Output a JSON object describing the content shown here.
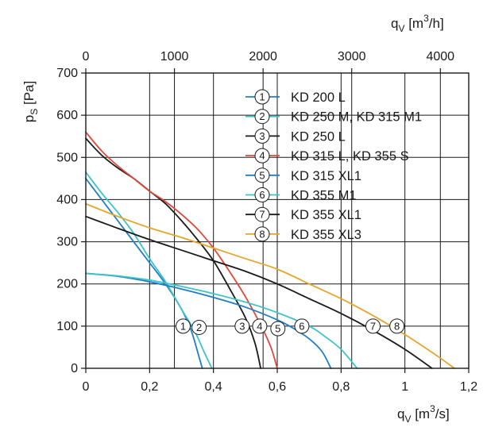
{
  "chart_data": {
    "type": "line",
    "ylabel": {
      "main": "p",
      "sub": "S",
      "unit": " [Pa]"
    },
    "xlabel_bottom": {
      "main": "q",
      "sub": "V",
      "unit_pre": " [m",
      "sup": "3",
      "unit_post": "/s]"
    },
    "xlabel_top": {
      "main": "q",
      "sub": "V",
      "unit_pre": " [m",
      "sup": "3",
      "unit_post": "/h]"
    },
    "x_range": [
      0,
      1.2
    ],
    "x_ticks": [
      0,
      0.2,
      0.4,
      0.6,
      0.8,
      1,
      1.2
    ],
    "x_tick_labels": [
      "0",
      "0,2",
      "0,4",
      "0,6",
      "0,8",
      "1",
      "1,2"
    ],
    "x_top_range_m3h": [
      0,
      4320
    ],
    "x_top_ticks": [
      0,
      1000,
      2000,
      3000,
      4000
    ],
    "x_top_tick_labels": [
      "0",
      "1000",
      "2000",
      "3000",
      "4000"
    ],
    "y_range": [
      0,
      700
    ],
    "y_ticks": [
      0,
      100,
      200,
      300,
      400,
      500,
      600,
      700
    ],
    "y_tick_labels": [
      "0",
      "100",
      "200",
      "300",
      "400",
      "500",
      "600",
      "700"
    ],
    "grid": true,
    "legend_position": "top-right",
    "series": [
      {
        "id": "1",
        "name": "KD 200 L",
        "color": "#1f7fc6",
        "points": [
          [
            0,
            450
          ],
          [
            0.05,
            400
          ],
          [
            0.1,
            350
          ],
          [
            0.15,
            300
          ],
          [
            0.2,
            250
          ],
          [
            0.25,
            200
          ],
          [
            0.3,
            140
          ],
          [
            0.33,
            90
          ],
          [
            0.35,
            40
          ],
          [
            0.365,
            0
          ]
        ],
        "marker_at": [
          0.305,
          100
        ]
      },
      {
        "id": "2",
        "name": "KD 250 M, KD 315 M1",
        "color": "#3cc4c8",
        "points": [
          [
            0,
            465
          ],
          [
            0.05,
            415
          ],
          [
            0.1,
            370
          ],
          [
            0.15,
            320
          ],
          [
            0.2,
            260
          ],
          [
            0.25,
            205
          ],
          [
            0.3,
            140
          ],
          [
            0.34,
            90
          ],
          [
            0.37,
            40
          ],
          [
            0.395,
            0
          ]
        ],
        "marker_at": [
          0.355,
          97
        ]
      },
      {
        "id": "3",
        "name": "KD 250 L",
        "color": "#1a1a1a",
        "points": [
          [
            0,
            545
          ],
          [
            0.05,
            505
          ],
          [
            0.1,
            475
          ],
          [
            0.15,
            450
          ],
          [
            0.2,
            420
          ],
          [
            0.25,
            390
          ],
          [
            0.3,
            350
          ],
          [
            0.35,
            305
          ],
          [
            0.4,
            255
          ],
          [
            0.45,
            190
          ],
          [
            0.5,
            120
          ],
          [
            0.53,
            60
          ],
          [
            0.548,
            0
          ]
        ],
        "marker_at": [
          0.49,
          100
        ]
      },
      {
        "id": "4",
        "name": "KD 315 L, KD 355 S",
        "color": "#e2463b",
        "points": [
          [
            0,
            560
          ],
          [
            0.05,
            515
          ],
          [
            0.1,
            480
          ],
          [
            0.15,
            450
          ],
          [
            0.2,
            420
          ],
          [
            0.25,
            395
          ],
          [
            0.3,
            365
          ],
          [
            0.35,
            330
          ],
          [
            0.4,
            285
          ],
          [
            0.45,
            230
          ],
          [
            0.5,
            170
          ],
          [
            0.55,
            100
          ],
          [
            0.58,
            50
          ],
          [
            0.6,
            0
          ]
        ],
        "marker_at": [
          0.545,
          100
        ]
      },
      {
        "id": "5",
        "name": "KD 315 XL1",
        "color": "#1f7fc6",
        "points": [
          [
            0,
            225
          ],
          [
            0.1,
            218
          ],
          [
            0.2,
            205
          ],
          [
            0.3,
            188
          ],
          [
            0.4,
            168
          ],
          [
            0.5,
            145
          ],
          [
            0.6,
            115
          ],
          [
            0.65,
            95
          ],
          [
            0.7,
            70
          ],
          [
            0.74,
            40
          ],
          [
            0.768,
            0
          ]
        ],
        "marker_at": [
          0.602,
          94
        ]
      },
      {
        "id": "6",
        "name": "KD 355 M1",
        "color": "#3cc4c8",
        "points": [
          [
            0,
            225
          ],
          [
            0.1,
            219
          ],
          [
            0.2,
            209
          ],
          [
            0.3,
            194
          ],
          [
            0.4,
            177
          ],
          [
            0.5,
            157
          ],
          [
            0.6,
            132
          ],
          [
            0.7,
            100
          ],
          [
            0.75,
            75
          ],
          [
            0.8,
            45
          ],
          [
            0.85,
            0
          ]
        ],
        "marker_at": [
          0.677,
          100
        ]
      },
      {
        "id": "7",
        "name": "KD 355 XL1",
        "color": "#1a1a1a",
        "points": [
          [
            0,
            360
          ],
          [
            0.1,
            332
          ],
          [
            0.2,
            305
          ],
          [
            0.3,
            280
          ],
          [
            0.4,
            255
          ],
          [
            0.5,
            230
          ],
          [
            0.6,
            200
          ],
          [
            0.7,
            165
          ],
          [
            0.8,
            130
          ],
          [
            0.9,
            90
          ],
          [
            1,
            45
          ],
          [
            1.085,
            0
          ]
        ],
        "marker_at": [
          0.9,
          100
        ]
      },
      {
        "id": "8",
        "name": "KD 355 XL3",
        "color": "#e6a52a",
        "points": [
          [
            0,
            390
          ],
          [
            0.1,
            360
          ],
          [
            0.2,
            333
          ],
          [
            0.3,
            310
          ],
          [
            0.4,
            285
          ],
          [
            0.5,
            260
          ],
          [
            0.6,
            235
          ],
          [
            0.7,
            200
          ],
          [
            0.8,
            165
          ],
          [
            0.9,
            125
          ],
          [
            1,
            80
          ],
          [
            1.1,
            30
          ],
          [
            1.155,
            0
          ]
        ],
        "marker_at": [
          0.975,
          100
        ]
      }
    ]
  }
}
